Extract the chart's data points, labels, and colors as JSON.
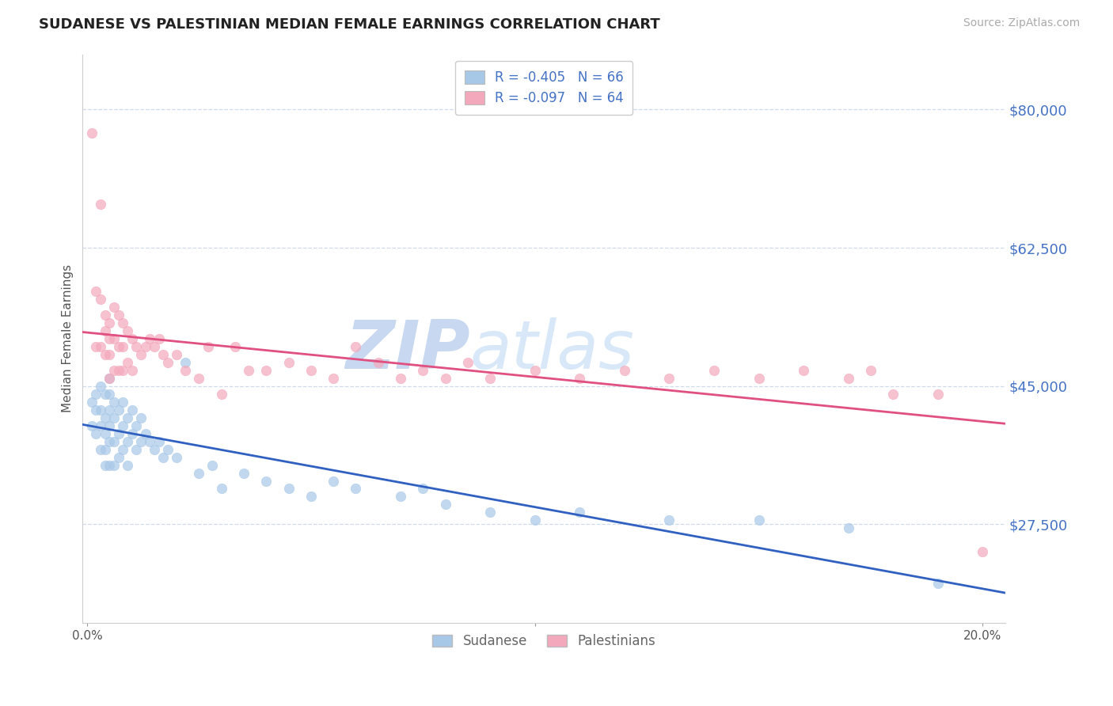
{
  "title": "SUDANESE VS PALESTINIAN MEDIAN FEMALE EARNINGS CORRELATION CHART",
  "source": "Source: ZipAtlas.com",
  "ylabel": "Median Female Earnings",
  "ytick_labels": [
    "$27,500",
    "$45,000",
    "$62,500",
    "$80,000"
  ],
  "ytick_values": [
    27500,
    45000,
    62500,
    80000
  ],
  "ymin": 15000,
  "ymax": 87000,
  "xmin": -0.001,
  "xmax": 0.205,
  "color_blue": "#a8c8e8",
  "color_pink": "#f4a8bc",
  "color_blue_line": "#3060c0",
  "color_pink_line": "#e05080",
  "color_tick_label": "#4472c4",
  "color_grid": "#c8d8ec",
  "watermark_color": "#dce8f4",
  "sudanese_x": [
    0.001,
    0.001,
    0.002,
    0.002,
    0.002,
    0.003,
    0.003,
    0.003,
    0.003,
    0.004,
    0.004,
    0.004,
    0.004,
    0.004,
    0.005,
    0.005,
    0.005,
    0.005,
    0.005,
    0.005,
    0.006,
    0.006,
    0.006,
    0.006,
    0.007,
    0.007,
    0.007,
    0.008,
    0.008,
    0.008,
    0.009,
    0.009,
    0.009,
    0.01,
    0.01,
    0.011,
    0.011,
    0.012,
    0.012,
    0.013,
    0.014,
    0.015,
    0.016,
    0.017,
    0.018,
    0.02,
    0.022,
    0.025,
    0.028,
    0.03,
    0.035,
    0.04,
    0.045,
    0.05,
    0.055,
    0.06,
    0.07,
    0.075,
    0.08,
    0.09,
    0.1,
    0.11,
    0.13,
    0.15,
    0.17,
    0.19
  ],
  "sudanese_y": [
    43000,
    40000,
    44000,
    42000,
    39000,
    45000,
    42000,
    40000,
    37000,
    44000,
    41000,
    39000,
    37000,
    35000,
    46000,
    44000,
    42000,
    40000,
    38000,
    35000,
    43000,
    41000,
    38000,
    35000,
    42000,
    39000,
    36000,
    43000,
    40000,
    37000,
    41000,
    38000,
    35000,
    42000,
    39000,
    40000,
    37000,
    41000,
    38000,
    39000,
    38000,
    37000,
    38000,
    36000,
    37000,
    36000,
    48000,
    34000,
    35000,
    32000,
    34000,
    33000,
    32000,
    31000,
    33000,
    32000,
    31000,
    32000,
    30000,
    29000,
    28000,
    29000,
    28000,
    28000,
    27000,
    20000
  ],
  "palestinian_x": [
    0.001,
    0.002,
    0.002,
    0.003,
    0.003,
    0.003,
    0.004,
    0.004,
    0.004,
    0.005,
    0.005,
    0.005,
    0.005,
    0.006,
    0.006,
    0.006,
    0.007,
    0.007,
    0.007,
    0.008,
    0.008,
    0.008,
    0.009,
    0.009,
    0.01,
    0.01,
    0.011,
    0.012,
    0.013,
    0.014,
    0.015,
    0.016,
    0.017,
    0.018,
    0.02,
    0.022,
    0.025,
    0.027,
    0.03,
    0.033,
    0.036,
    0.04,
    0.045,
    0.05,
    0.055,
    0.06,
    0.065,
    0.07,
    0.075,
    0.08,
    0.085,
    0.09,
    0.1,
    0.11,
    0.12,
    0.13,
    0.14,
    0.15,
    0.16,
    0.17,
    0.175,
    0.18,
    0.19,
    0.2
  ],
  "palestinian_y": [
    77000,
    57000,
    50000,
    68000,
    56000,
    50000,
    54000,
    52000,
    49000,
    53000,
    51000,
    49000,
    46000,
    55000,
    51000,
    47000,
    54000,
    50000,
    47000,
    53000,
    50000,
    47000,
    52000,
    48000,
    51000,
    47000,
    50000,
    49000,
    50000,
    51000,
    50000,
    51000,
    49000,
    48000,
    49000,
    47000,
    46000,
    50000,
    44000,
    50000,
    47000,
    47000,
    48000,
    47000,
    46000,
    50000,
    48000,
    46000,
    47000,
    46000,
    48000,
    46000,
    47000,
    46000,
    47000,
    46000,
    47000,
    46000,
    47000,
    46000,
    47000,
    44000,
    44000,
    24000
  ]
}
